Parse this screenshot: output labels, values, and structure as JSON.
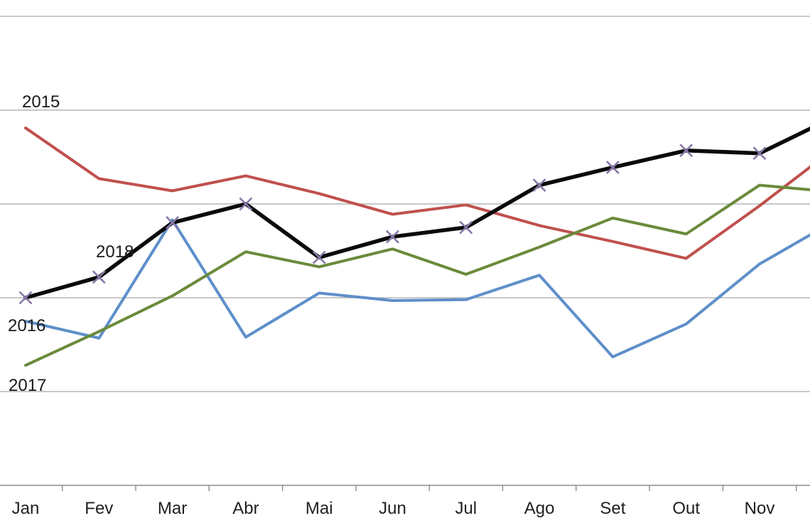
{
  "chart_data": {
    "type": "line",
    "title": "",
    "xlabel": "",
    "ylabel": "",
    "categories": [
      "Jan",
      "Fev",
      "Mar",
      "Abr",
      "Mai",
      "Jun",
      "Jul",
      "Ago",
      "Set",
      "Out",
      "Nov"
    ],
    "note": "Monthly line chart (Portuguese month names). No y-axis tick labels are visible; values are expressed in gridline units where 0 = bottom axis line and 1.0 = one horizontal gridline spacing (5 gridline bands visible). Lines continue past the right edge toward an off-screen 12th point (Dez); the 12th value in each series is the off-screen continuation point.",
    "y_axis_labels_visible": false,
    "ylim": [
      0,
      5.17
    ],
    "grid": "horizontal-only",
    "gridline_color": "#A6A6A6",
    "axis_color": "#8C8C8C",
    "text_color": "#1f1f1f",
    "legend_position": "inline labels at left edge of plot",
    "series": [
      {
        "name": "2015",
        "color": "#C0504D",
        "marker": "none",
        "values": [
          3.81,
          3.27,
          3.14,
          3.3,
          3.11,
          2.89,
          2.99,
          2.77,
          2.6,
          2.42,
          2.98,
          3.58
        ]
      },
      {
        "name": "2016",
        "color": "#5E8FC9",
        "marker": "none",
        "values": [
          1.75,
          1.57,
          2.83,
          1.58,
          2.05,
          1.97,
          1.98,
          2.24,
          1.37,
          1.72,
          2.36,
          2.81
        ]
      },
      {
        "name": "2017",
        "color": "#6A8A3A",
        "marker": "none",
        "values": [
          1.28,
          1.64,
          2.02,
          2.49,
          2.33,
          2.52,
          2.25,
          2.54,
          2.85,
          2.68,
          3.2,
          3.13
        ]
      },
      {
        "name": "2018",
        "color": "#0A0A0A",
        "marker": "x",
        "marker_color": "#8878A8",
        "values": [
          2.0,
          2.22,
          2.8,
          3.0,
          2.43,
          2.65,
          2.75,
          3.2,
          3.39,
          3.57,
          3.54,
          3.92
        ]
      }
    ]
  }
}
